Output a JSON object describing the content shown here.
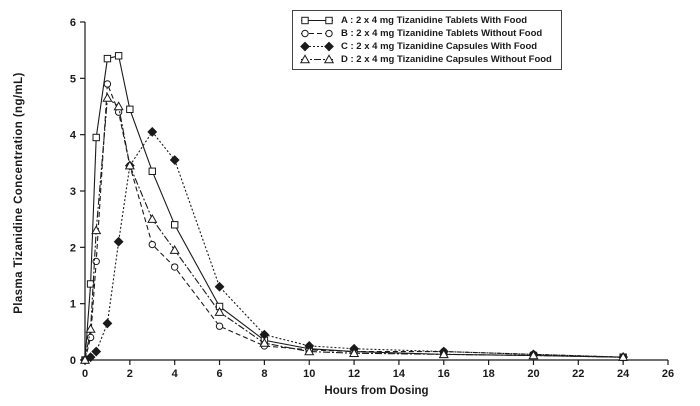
{
  "chart_data": {
    "type": "line",
    "title": "",
    "xlabel": "Hours from Dosing",
    "ylabel": "Plasma Tizanidine Concentration  (ng/mL)",
    "xlim": [
      0,
      26
    ],
    "ylim": [
      0,
      6
    ],
    "xticks": [
      0,
      2,
      4,
      6,
      8,
      10,
      12,
      14,
      16,
      18,
      20,
      22,
      24,
      26
    ],
    "yticks": [
      0,
      1,
      2,
      3,
      4,
      5,
      6
    ],
    "grid": false,
    "legend_position": "top-center",
    "x": [
      0,
      0.25,
      0.5,
      1,
      1.5,
      2,
      3,
      4,
      6,
      8,
      10,
      12,
      16,
      20,
      24
    ],
    "series": [
      {
        "name": "A",
        "label": "A : 2 x 4 mg Tizanidine Tablets With Food",
        "marker": "square",
        "line": "solid",
        "values": [
          0,
          1.35,
          3.95,
          5.35,
          5.4,
          4.45,
          3.35,
          2.4,
          0.95,
          0.35,
          0.2,
          0.15,
          0.1,
          0.08,
          0.05
        ]
      },
      {
        "name": "B",
        "label": "B : 2 x 4 mg Tizanidine Tablets Without Food",
        "marker": "circle",
        "line": "dashed",
        "values": [
          0,
          0.4,
          1.75,
          4.9,
          4.4,
          3.45,
          2.05,
          1.65,
          0.6,
          0.25,
          0.18,
          0.15,
          0.15,
          0.1,
          0.05
        ]
      },
      {
        "name": "C",
        "label": "C : 2 x 4 mg Tizanidine Capsules With Food",
        "marker": "diamond",
        "line": "short-dash",
        "values": [
          0,
          0.05,
          0.15,
          0.65,
          2.1,
          3.45,
          4.05,
          3.55,
          1.3,
          0.45,
          0.25,
          0.2,
          0.15,
          0.1,
          0.05
        ]
      },
      {
        "name": "D",
        "label": "D : 2 x 4 mg Tizanidine Capsules Without Food",
        "marker": "triangle",
        "line": "dash-dot",
        "values": [
          0,
          0.55,
          2.3,
          4.65,
          4.5,
          3.45,
          2.5,
          1.95,
          0.85,
          0.3,
          0.15,
          0.12,
          0.1,
          0.08,
          0.05
        ]
      }
    ],
    "colors": {
      "ink": "#1a1a1a",
      "background": "#ffffff"
    }
  }
}
